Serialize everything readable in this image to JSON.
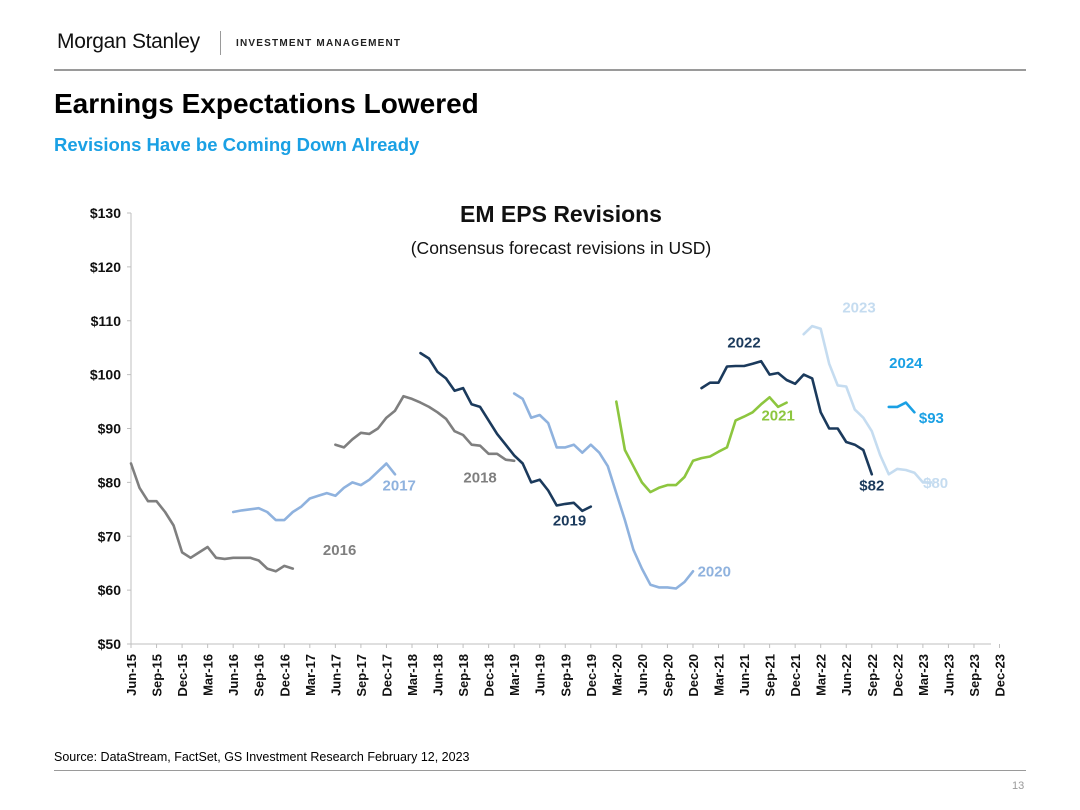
{
  "header": {
    "brand": "Morgan Stanley",
    "division": "INVESTMENT MANAGEMENT",
    "title": "Earnings Expectations Lowered",
    "subtitle": "Revisions Have be Coming Down Already"
  },
  "footer": {
    "source": "Source: DataStream, FactSet, GS Investment Research February 12, 2023",
    "page_number": "13"
  },
  "chart_data": {
    "type": "line",
    "title": "EM EPS Revisions",
    "subtitle": "(Consensus forecast revisions in USD)",
    "xlabel": "",
    "ylabel": "",
    "ylim": [
      50,
      130
    ],
    "yticks": [
      50,
      60,
      70,
      80,
      90,
      100,
      110,
      120,
      130
    ],
    "ytick_labels": [
      "$50",
      "$60",
      "$70",
      "$80",
      "$90",
      "$100",
      "$110",
      "$120",
      "$130"
    ],
    "x_start": "2015-06",
    "x_months": 102,
    "xtick_labels": [
      "Jun-15",
      "Sep-15",
      "Dec-15",
      "Mar-16",
      "Jun-16",
      "Sep-16",
      "Dec-16",
      "Mar-17",
      "Jun-17",
      "Sep-17",
      "Dec-17",
      "Mar-18",
      "Jun-18",
      "Sep-18",
      "Dec-18",
      "Mar-19",
      "Jun-19",
      "Sep-19",
      "Dec-19",
      "Mar-20",
      "Jun-20",
      "Sep-20",
      "Dec-20",
      "Mar-21",
      "Jun-21",
      "Sep-21",
      "Dec-21",
      "Mar-22",
      "Jun-22",
      "Sep-22",
      "Dec-22",
      "Mar-23",
      "Jun-23",
      "Sep-23",
      "Dec-23"
    ],
    "grid": false,
    "series": [
      {
        "name": "2016",
        "label": "2016",
        "color": "#7f7f7f",
        "start": 0,
        "label_at": [
          24.5,
          66.5
        ],
        "values": [
          83.5,
          79,
          76.5,
          76.5,
          74.5,
          72,
          67,
          66,
          67,
          68,
          66,
          65.8,
          66,
          66,
          66,
          65.5,
          64,
          63.5,
          64.5,
          64
        ]
      },
      {
        "name": "2017",
        "label": "2017",
        "color": "#8fb2de",
        "start": 12,
        "label_at": [
          31.5,
          78.5
        ],
        "values": [
          74.5,
          74.8,
          75,
          75.2,
          74.5,
          73,
          73,
          74.5,
          75.5,
          77,
          77.5,
          78,
          77.5,
          79,
          80,
          79.5,
          80.5,
          82,
          83.5,
          81.5
        ]
      },
      {
        "name": "2018",
        "label": "2018",
        "color": "#7f7f7f",
        "start": 24,
        "label_at": [
          41,
          80
        ],
        "values": [
          87,
          86.5,
          88,
          89.2,
          89,
          90,
          92,
          93.3,
          96,
          95.5,
          94.8,
          94,
          93,
          91.8,
          89.5,
          88.8,
          87,
          86.8,
          85.3,
          85.3,
          84.2,
          84
        ]
      },
      {
        "name": "2019",
        "label": "2019",
        "color": "#1b3a5c",
        "start": 34,
        "label_at": [
          51.5,
          72
        ]
      },
      {
        "name": "2020",
        "label": "2020",
        "color": "#8fb2de",
        "start": 45,
        "label_at": [
          68.5,
          62.5
        ],
        "values": [
          96.5,
          95.5,
          92,
          92.5,
          91,
          86.5,
          86.5,
          87,
          85.5,
          87,
          85.5,
          83,
          78,
          73,
          67.5,
          64,
          61,
          60.5,
          60.5,
          60.3,
          61.5,
          63.5
        ]
      },
      {
        "name": "2021",
        "label": "2021",
        "color": "#8dc63f",
        "start": 57,
        "label_at": [
          76,
          91.5
        ],
        "values": [
          95,
          86,
          83,
          80,
          78.2,
          79,
          79.5,
          79.5,
          81,
          84,
          84.5,
          84.8,
          85.7,
          86.5,
          91.5,
          92.2,
          93,
          94.5,
          95.8,
          94,
          94.8
        ]
      },
      {
        "name": "2022",
        "label": "2022",
        "color": "#1b3a5c",
        "start": 67,
        "label_at": [
          72,
          105
        ],
        "values": [
          97.5,
          98.5,
          98.5,
          101.5,
          101.6,
          101.6,
          102,
          102.5,
          100,
          100.3,
          99,
          98.3,
          100,
          99.3,
          93,
          90,
          90,
          87.5,
          87,
          86,
          81.5
        ]
      },
      {
        "name": "2023",
        "label": "2023",
        "color": "#c5dcf0",
        "start": 79,
        "label_at": [
          85.5,
          111.5
        ],
        "values": [
          107.5,
          109,
          108.5,
          102,
          98,
          97.8,
          93.5,
          92,
          89.5,
          85,
          81.5,
          82.5,
          82.3,
          81.8,
          80,
          80
        ]
      },
      {
        "name": "2024",
        "label": "2024",
        "color": "#1aa0e4",
        "start": 89,
        "label_at": [
          91,
          101.2
        ],
        "values": [
          94,
          94,
          94.8,
          93
        ]
      }
    ],
    "series_2019_values": [
      104,
      103,
      100.5,
      99.3,
      97,
      97.5,
      94.5,
      94,
      91.5,
      89,
      87,
      85,
      83.5,
      80,
      80.5,
      78.5,
      75.7,
      76,
      76.2,
      74.7,
      75.5
    ],
    "annotations": [
      {
        "text": "$82",
        "color": "#1b3a5c",
        "at": [
          87,
          78.5
        ]
      },
      {
        "text": "$80",
        "color": "#c5dcf0",
        "at": [
          94.5,
          79
        ]
      },
      {
        "text": "$93",
        "color": "#1aa0e4",
        "at": [
          94,
          91
        ]
      }
    ]
  }
}
